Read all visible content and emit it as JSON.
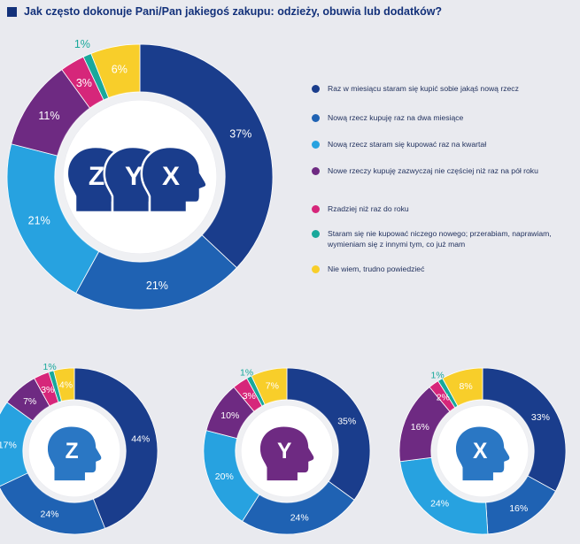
{
  "title": "Jak często dokonuje Pani/Pan jakiegoś zakupu: odzieży, obuwia lub dodatków?",
  "colors": [
    "#1a3d8c",
    "#1f62b3",
    "#27a2e0",
    "#6e2a82",
    "#d6267a",
    "#19a89b",
    "#f8ce2a"
  ],
  "legend": [
    "Raz w miesiącu staram się kupić sobie jakąś nową rzecz",
    "Nową rzecz kupuję raz na dwa miesiące",
    "Nową rzecz staram się kupować raz na kwartał",
    "Nowe rzeczy kupuję zazwyczaj nie częściej niż raz na pół roku",
    "Rzadziej niż raz do roku",
    "Staram się nie kupować niczego nowego; przerabiam, naprawiam, wymieniam się z innymi tym, co już mam",
    "Nie wiem, trudno powiedzieć"
  ],
  "chart_data": [
    {
      "type": "pie",
      "name": "ZYX",
      "center_letters": [
        "Z",
        "Y",
        "X"
      ],
      "categories": [
        "Raz w miesiącu staram się kupić sobie jakąś nową rzecz",
        "Nową rzecz kupuję raz na dwa miesiące",
        "Nową rzecz staram się kupować raz na kwartał",
        "Nowe rzeczy kupuję zazwyczaj nie częściej niż raz na pół roku",
        "Rzadziej niż raz do roku",
        "Staram się nie kupować niczego nowego; przerabiam, naprawiam, wymieniam się z innymi tym, co już mam",
        "Nie wiem, trudno powiedzieć"
      ],
      "values": [
        37,
        21,
        21,
        11,
        3,
        1,
        6
      ],
      "labels": [
        "37%",
        "21%",
        "21%",
        "11%",
        "3%",
        "1%",
        "6%"
      ],
      "unit": "%"
    },
    {
      "type": "pie",
      "name": "Z",
      "center_letters": [
        "Z"
      ],
      "values": [
        44,
        24,
        17,
        7,
        3,
        1,
        4
      ],
      "labels": [
        "44%",
        "24%",
        "17%",
        "7%",
        "3%",
        "1%",
        "4%"
      ],
      "unit": "%"
    },
    {
      "type": "pie",
      "name": "Y",
      "center_letters": [
        "Y"
      ],
      "values": [
        35,
        24,
        20,
        10,
        3,
        1,
        7
      ],
      "labels": [
        "35%",
        "24%",
        "20%",
        "10%",
        "3%",
        "1%",
        "7%"
      ],
      "unit": "%"
    },
    {
      "type": "pie",
      "name": "X",
      "center_letters": [
        "X"
      ],
      "values": [
        33,
        16,
        24,
        16,
        2,
        1,
        8
      ],
      "labels": [
        "33%",
        "16%",
        "24%",
        "16%",
        "2%",
        "1%",
        "8%"
      ],
      "unit": "%"
    }
  ]
}
